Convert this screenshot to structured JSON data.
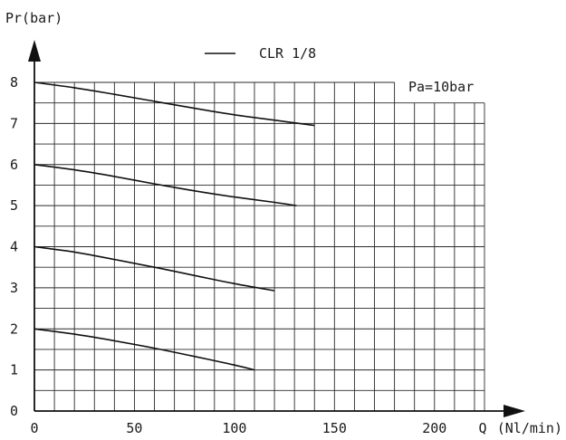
{
  "chart_data": {
    "type": "line",
    "ylabel": "Pr(bar)",
    "xlabel_symbol": "Q",
    "xlabel_unit": "(Nl/min)",
    "legend_label": "CLR 1/8",
    "annotation": "Pa=10bar",
    "xlim": [
      0,
      225
    ],
    "ylim": [
      0,
      8
    ],
    "x_ticks": [
      {
        "value": 0,
        "label": "0"
      },
      {
        "value": 50,
        "label": "50"
      },
      {
        "value": 100,
        "label": "100"
      },
      {
        "value": 150,
        "label": "150"
      },
      {
        "value": 200,
        "label": "200"
      }
    ],
    "y_ticks": [
      {
        "value": 0,
        "label": "0"
      },
      {
        "value": 1,
        "label": "1"
      },
      {
        "value": 2,
        "label": "2"
      },
      {
        "value": 3,
        "label": "3"
      },
      {
        "value": 4,
        "label": "4"
      },
      {
        "value": 5,
        "label": "5"
      },
      {
        "value": 6,
        "label": "6"
      },
      {
        "value": 7,
        "label": "7"
      },
      {
        "value": 8,
        "label": "8"
      }
    ],
    "grid": true,
    "grid_x_step": 10,
    "grid_y_step": 0.5,
    "series": [
      {
        "x": [
          0,
          20,
          40,
          60,
          80,
          100,
          120,
          140
        ],
        "y": [
          8,
          7.87,
          7.71,
          7.54,
          7.37,
          7.21,
          7.08,
          6.95
        ]
      },
      {
        "x": [
          0,
          20,
          40,
          60,
          80,
          100,
          120,
          131
        ],
        "y": [
          6,
          5.87,
          5.71,
          5.53,
          5.36,
          5.21,
          5.08,
          5.0
        ]
      },
      {
        "x": [
          0,
          20,
          40,
          60,
          80,
          100,
          120
        ],
        "y": [
          4,
          3.87,
          3.69,
          3.5,
          3.3,
          3.1,
          2.93
        ]
      },
      {
        "x": [
          0,
          20,
          40,
          60,
          80,
          100,
          110
        ],
        "y": [
          2,
          1.87,
          1.71,
          1.53,
          1.33,
          1.12,
          1.0
        ]
      }
    ]
  }
}
